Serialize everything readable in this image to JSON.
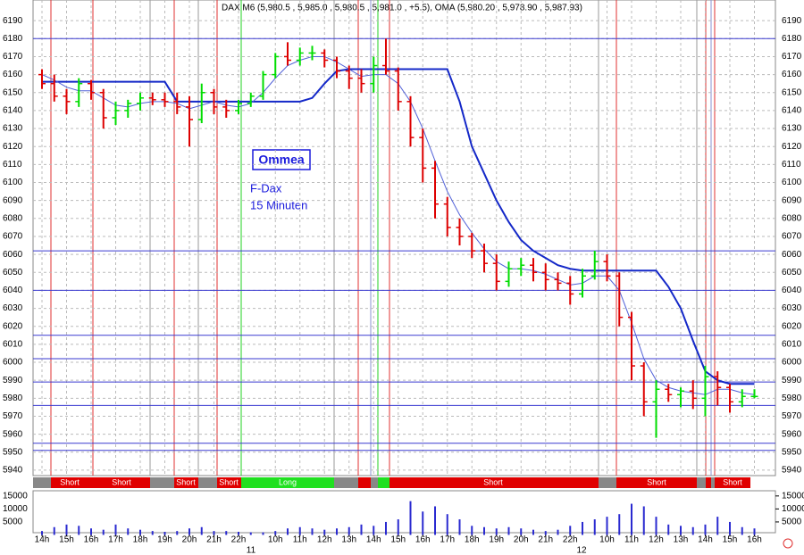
{
  "chart_data": {
    "type": "ohlc",
    "title": "DAX M6 (5,980.5 , 5,985.0 , 5,980.5 , 5,981.0 , +5.5), OMA (5,980.20 , 5,978.90 , 5,987.93)",
    "annotations": [
      "Ommea",
      "F-Dax",
      "15 Minuten"
    ],
    "signals": [
      "Short",
      "Short",
      "Short",
      "Short",
      "Long",
      "Short",
      "Short",
      "Short"
    ],
    "dates": [
      "11",
      "12"
    ],
    "categories": [
      "14h",
      null,
      "15h",
      null,
      "16h",
      null,
      "17h",
      null,
      "18h",
      null,
      "19h",
      null,
      "20h",
      null,
      "21h",
      null,
      "22h",
      null,
      null,
      "10h",
      null,
      "11h",
      null,
      "12h",
      null,
      "13h",
      null,
      "14h",
      null,
      "15h",
      null,
      "16h",
      null,
      "17h",
      null,
      "18h",
      null,
      "19h",
      null,
      "20h",
      null,
      "21h",
      null,
      "22h",
      null,
      null,
      "10h",
      null,
      "11h",
      null,
      "12h",
      null,
      "13h",
      null,
      "14h",
      null,
      "15h",
      null,
      "16h"
    ],
    "open": [
      6160,
      6155,
      6148,
      6145,
      6155,
      6150,
      6136,
      6140,
      6144,
      6147,
      6146,
      6145,
      6142,
      6135,
      6150,
      6142,
      6140,
      6144,
      6148,
      6160,
      6170,
      6168,
      6172,
      6172,
      6168,
      6162,
      6158,
      6155,
      6165,
      6162,
      6145,
      6125,
      6108,
      6088,
      6075,
      6070,
      6062,
      6055,
      6045,
      6052,
      6054,
      6050,
      6046,
      6044,
      6038,
      6048,
      6056,
      6048,
      6025,
      5998,
      5978,
      5985,
      5982,
      5984,
      5980,
      5992,
      5986,
      5978,
      5981
    ],
    "high": [
      6163,
      6160,
      6152,
      6158,
      6157,
      6152,
      6145,
      6146,
      6150,
      6150,
      6150,
      6150,
      6148,
      6155,
      6152,
      6146,
      6146,
      6150,
      6162,
      6172,
      6178,
      6175,
      6176,
      6174,
      6170,
      6165,
      6163,
      6170,
      6180,
      6164,
      6148,
      6130,
      6112,
      6092,
      6080,
      6072,
      6066,
      6060,
      6056,
      6058,
      6058,
      6055,
      6050,
      6048,
      6052,
      6062,
      6060,
      6050,
      6028,
      6000,
      5990,
      5988,
      5986,
      5990,
      5998,
      5995,
      5988,
      5985,
      5985
    ],
    "low": [
      6152,
      6145,
      6138,
      6142,
      6146,
      6130,
      6132,
      6136,
      6140,
      6143,
      6142,
      6138,
      6120,
      6133,
      6138,
      6136,
      6138,
      6142,
      6146,
      6158,
      6165,
      6165,
      6168,
      6164,
      6158,
      6152,
      6150,
      6150,
      6160,
      6140,
      6120,
      6100,
      6080,
      6070,
      6065,
      6058,
      6050,
      6040,
      6042,
      6048,
      6045,
      6040,
      6040,
      6032,
      6036,
      6046,
      6045,
      6020,
      5990,
      5970,
      5958,
      5978,
      5975,
      5974,
      5970,
      5976,
      5972,
      5975,
      5980
    ],
    "close": [
      6155,
      6148,
      6145,
      6155,
      6150,
      6136,
      6140,
      6144,
      6147,
      6146,
      6145,
      6142,
      6135,
      6150,
      6142,
      6140,
      6144,
      6148,
      6160,
      6170,
      6168,
      6172,
      6172,
      6168,
      6162,
      6158,
      6155,
      6165,
      6162,
      6145,
      6125,
      6108,
      6088,
      6075,
      6070,
      6062,
      6055,
      6045,
      6052,
      6054,
      6050,
      6046,
      6044,
      6038,
      6048,
      6056,
      6048,
      6025,
      5998,
      5978,
      5985,
      5982,
      5984,
      5980,
      5992,
      5986,
      5978,
      5981,
      5981
    ],
    "up_color": "#00dd00",
    "down_color": "#dd0000",
    "series": [
      {
        "color": "#1428c8",
        "values": [
          6156,
          6156,
          6156,
          6156,
          6156,
          6156,
          6156,
          6156,
          6156,
          6156,
          6156,
          6145,
          6145,
          6145,
          6145,
          6145,
          6145,
          6145,
          6145,
          6145,
          6145,
          6145,
          6147,
          6155,
          6162,
          6163,
          6163,
          6163,
          6163,
          6163,
          6163,
          6163,
          6163,
          6163,
          6145,
          6120,
          6105,
          6090,
          6078,
          6068,
          6062,
          6058,
          6054,
          6052,
          6051,
          6051,
          6051,
          6051,
          6051,
          6051,
          6051,
          6042,
          6030,
          6012,
          5995,
          5990,
          5988,
          5988,
          5988
        ]
      },
      {
        "color": "#5060d8",
        "values": [
          6160,
          6157,
          6153,
          6151,
          6151,
          6147,
          6143,
          6142,
          6144,
          6145,
          6145,
          6144,
          6141,
          6143,
          6145,
          6143,
          6142,
          6144,
          6150,
          6158,
          6165,
          6168,
          6170,
          6170,
          6167,
          6163,
          6159,
          6160,
          6160,
          6155,
          6145,
          6130,
          6112,
          6095,
          6082,
          6072,
          6063,
          6056,
          6052,
          6052,
          6051,
          6049,
          6046,
          6043,
          6044,
          6048,
          6048,
          6040,
          6022,
          6002,
          5990,
          5986,
          5984,
          5983,
          5982,
          5985,
          5985,
          5983,
          5982
        ]
      }
    ],
    "levels": [
      6180,
      6062,
      6040,
      6015,
      6002,
      5989,
      5976,
      5955,
      5951
    ],
    "level_color": "#3a3ad0",
    "ylim": [
      5935,
      6200
    ],
    "yticks": [
      5940,
      5950,
      5960,
      5970,
      5980,
      5990,
      6000,
      6010,
      6020,
      6030,
      6040,
      6050,
      6060,
      6070,
      6080,
      6090,
      6100,
      6110,
      6120,
      6130,
      6140,
      6150,
      6160,
      6170,
      6180,
      6190
    ],
    "grid": true,
    "volume": {
      "color": "#2a2ad0",
      "values": [
        1500,
        3000,
        4000,
        3500,
        2500,
        2000,
        4000,
        2500,
        2000,
        1500,
        1200,
        1500,
        2500,
        3000,
        1500,
        1500,
        1200,
        1000,
        1000,
        1500,
        2500,
        3000,
        2500,
        2000,
        2500,
        3000,
        4000,
        3500,
        5000,
        6000,
        13000,
        9000,
        11000,
        8000,
        6000,
        3500,
        3000,
        2500,
        3000,
        2500,
        2000,
        1500,
        2000,
        3500,
        5000,
        6000,
        7000,
        8000,
        12000,
        11000,
        7000,
        4000,
        3500,
        3000,
        4000,
        7000,
        5000,
        3000,
        2500
      ],
      "ylim": [
        0,
        17000
      ],
      "yticks": [
        5000,
        10000,
        15000
      ]
    }
  }
}
